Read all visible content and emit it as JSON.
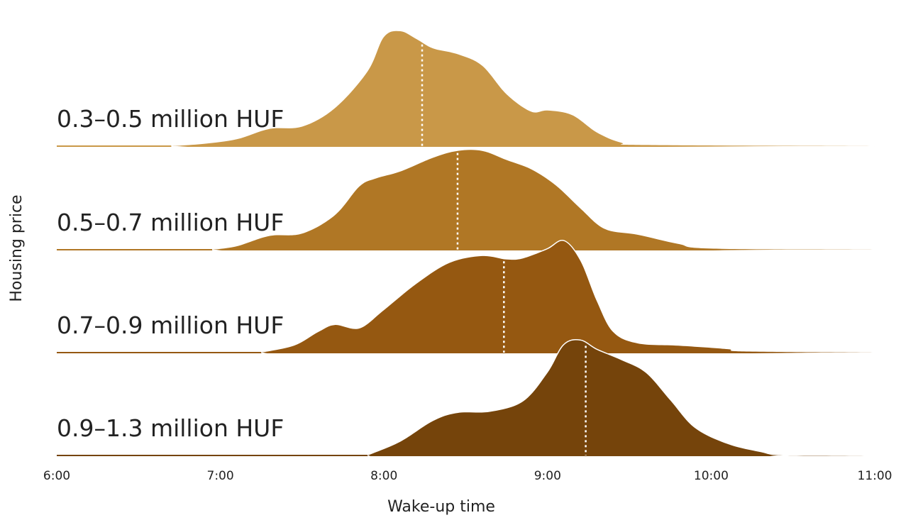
{
  "chart_data": {
    "type": "ridgeline",
    "title": "",
    "xlabel": "Wake-up time",
    "ylabel": "Housing price",
    "x_ticks": [
      "6:00",
      "7:00",
      "8:00",
      "9:00",
      "10:00",
      "11:00"
    ],
    "xlim_hours": [
      6,
      11
    ],
    "grid": false,
    "legend": "none",
    "median_line_style": "white dotted",
    "series": [
      {
        "name": "0.3–0.5 million HUF",
        "color": "#C99848",
        "median": "8:14",
        "density": [
          [
            6.7,
            0
          ],
          [
            6.9,
            0.02
          ],
          [
            7.1,
            0.06
          ],
          [
            7.3,
            0.15
          ],
          [
            7.5,
            0.17
          ],
          [
            7.7,
            0.33
          ],
          [
            7.9,
            0.65
          ],
          [
            8.0,
            0.95
          ],
          [
            8.1,
            1.0
          ],
          [
            8.2,
            0.93
          ],
          [
            8.3,
            0.85
          ],
          [
            8.45,
            0.8
          ],
          [
            8.6,
            0.7
          ],
          [
            8.75,
            0.45
          ],
          [
            8.9,
            0.3
          ],
          [
            9.0,
            0.31
          ],
          [
            9.15,
            0.27
          ],
          [
            9.3,
            0.12
          ],
          [
            9.45,
            0.03
          ],
          [
            9.6,
            0.01
          ],
          [
            11.0,
            0
          ]
        ]
      },
      {
        "name": "0.5–0.7 million HUF",
        "color": "#B07725",
        "median": "8:27",
        "density": [
          [
            6.95,
            0
          ],
          [
            7.1,
            0.03
          ],
          [
            7.3,
            0.12
          ],
          [
            7.5,
            0.14
          ],
          [
            7.7,
            0.3
          ],
          [
            7.85,
            0.55
          ],
          [
            7.95,
            0.62
          ],
          [
            8.1,
            0.68
          ],
          [
            8.3,
            0.8
          ],
          [
            8.45,
            0.86
          ],
          [
            8.6,
            0.86
          ],
          [
            8.75,
            0.78
          ],
          [
            8.9,
            0.7
          ],
          [
            9.05,
            0.56
          ],
          [
            9.2,
            0.36
          ],
          [
            9.35,
            0.18
          ],
          [
            9.55,
            0.13
          ],
          [
            9.8,
            0.05
          ],
          [
            10.0,
            0.01
          ],
          [
            11.0,
            0
          ]
        ]
      },
      {
        "name": "0.7–0.9 million HUF",
        "color": "#955811",
        "median": "8:44",
        "density": [
          [
            7.25,
            0
          ],
          [
            7.45,
            0.06
          ],
          [
            7.6,
            0.18
          ],
          [
            7.7,
            0.24
          ],
          [
            7.85,
            0.21
          ],
          [
            8.0,
            0.37
          ],
          [
            8.2,
            0.6
          ],
          [
            8.4,
            0.78
          ],
          [
            8.6,
            0.84
          ],
          [
            8.75,
            0.81
          ],
          [
            8.85,
            0.82
          ],
          [
            9.0,
            0.9
          ],
          [
            9.1,
            0.97
          ],
          [
            9.2,
            0.8
          ],
          [
            9.3,
            0.45
          ],
          [
            9.4,
            0.18
          ],
          [
            9.55,
            0.08
          ],
          [
            9.8,
            0.06
          ],
          [
            10.1,
            0.03
          ],
          [
            10.2,
            0.01
          ],
          [
            11.0,
            0
          ]
        ]
      },
      {
        "name": "0.9–1.3 million HUF",
        "color": "#75440B",
        "median": "9:14",
        "density": [
          [
            7.9,
            0
          ],
          [
            8.1,
            0.12
          ],
          [
            8.3,
            0.3
          ],
          [
            8.45,
            0.37
          ],
          [
            8.65,
            0.38
          ],
          [
            8.85,
            0.47
          ],
          [
            9.0,
            0.72
          ],
          [
            9.1,
            0.96
          ],
          [
            9.2,
            1.0
          ],
          [
            9.3,
            0.92
          ],
          [
            9.45,
            0.83
          ],
          [
            9.6,
            0.72
          ],
          [
            9.75,
            0.48
          ],
          [
            9.9,
            0.24
          ],
          [
            10.1,
            0.1
          ],
          [
            10.3,
            0.03
          ],
          [
            10.45,
            0.0
          ],
          [
            11.0,
            0
          ]
        ]
      }
    ]
  }
}
